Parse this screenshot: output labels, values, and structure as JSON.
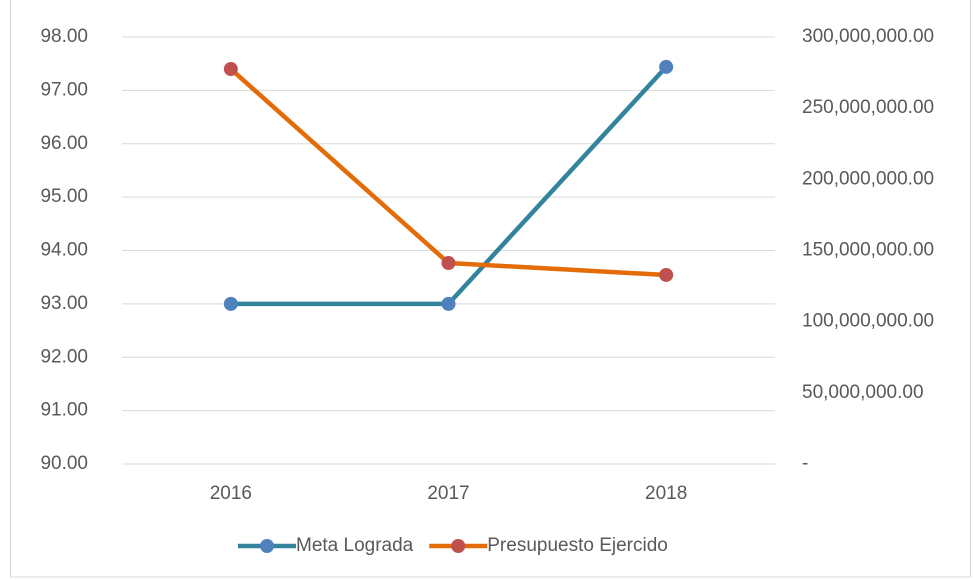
{
  "chart_data": {
    "type": "line",
    "categories": [
      "2016",
      "2017",
      "2018"
    ],
    "series": [
      {
        "name": "Meta Lograda",
        "color": "#31849b",
        "marker_color": "#4f81bd",
        "values": [
          93,
          93,
          97.44
        ]
      },
      {
        "name": "Presupuesto Ejercido",
        "color": "#e36c09",
        "marker_color": "#c0504d",
        "axis": "y2",
        "values": [
          277500000,
          141200000,
          132800000
        ]
      }
    ],
    "ylim": [
      90,
      98
    ],
    "yticks": [
      {
        "value": 90,
        "label": "90.00"
      },
      {
        "value": 91,
        "label": "91.00"
      },
      {
        "value": 92,
        "label": "92.00"
      },
      {
        "value": 93,
        "label": "93.00"
      },
      {
        "value": 94,
        "label": "94.00"
      },
      {
        "value": 95,
        "label": "95.00"
      },
      {
        "value": 96,
        "label": "96.00"
      },
      {
        "value": 97,
        "label": "97.00"
      },
      {
        "value": 98,
        "label": "98.00"
      }
    ],
    "y2lim": [
      0,
      300000000
    ],
    "y2ticks": [
      {
        "value": 0,
        "label": "-"
      },
      {
        "value": 50000000,
        "label": "50,000,000.00"
      },
      {
        "value": 100000000,
        "label": "100,000,000.00"
      },
      {
        "value": 150000000,
        "label": "150,000,000.00"
      },
      {
        "value": 200000000,
        "label": "200,000,000.00"
      },
      {
        "value": 250000000,
        "label": "250,000,000.00"
      },
      {
        "value": 300000000,
        "label": "300,000,000.00"
      }
    ],
    "grid": true,
    "legend": "bottom"
  }
}
